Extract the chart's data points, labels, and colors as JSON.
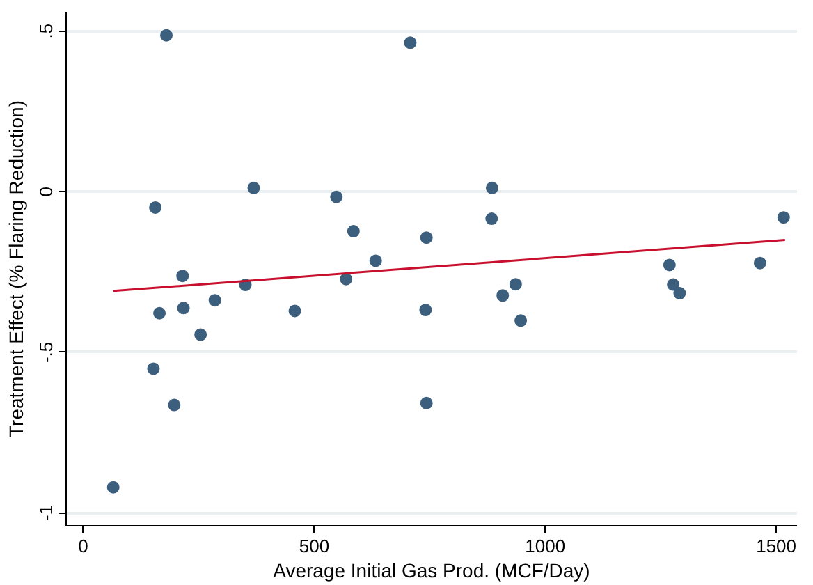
{
  "chart_data": {
    "type": "scatter",
    "xlabel": "Average Initial Gas Prod. (MCF/Day)",
    "ylabel": "Treatment Effect (% Flaring Reduction)",
    "xlim": [
      -37,
      1545
    ],
    "ylim": [
      -1.04,
      0.56
    ],
    "xticks": [
      0,
      500,
      1000,
      1500
    ],
    "yticks": [
      {
        "value": -1,
        "label": "-1"
      },
      {
        "value": -0.5,
        "label": "-.5"
      },
      {
        "value": 0,
        "label": "0"
      },
      {
        "value": 0.5,
        "label": ".5"
      }
    ],
    "grid": "y",
    "series": [
      {
        "marker": "circle",
        "color": "#3d5f7e",
        "x": [
          180,
          708,
          156,
          369,
          548,
          585,
          743,
          633,
          215,
          569,
          351,
          285,
          165,
          217,
          458,
          741,
          254,
          152,
          197,
          743,
          65,
          885,
          884,
          936,
          908,
          947,
          1269,
          1277,
          1291,
          1465,
          1516
        ],
        "values": [
          0.487,
          0.464,
          -0.049,
          0.012,
          -0.016,
          -0.123,
          -0.143,
          -0.215,
          -0.262,
          -0.272,
          -0.29,
          -0.338,
          -0.378,
          -0.362,
          -0.371,
          -0.368,
          -0.445,
          -0.551,
          -0.664,
          -0.658,
          -0.92,
          0.012,
          -0.084,
          -0.288,
          -0.323,
          -0.401,
          -0.228,
          -0.289,
          -0.316,
          -0.222,
          -0.08
        ]
      },
      {
        "type": "line",
        "color": "#c8102e",
        "x": [
          65,
          1519
        ],
        "values": [
          -0.309,
          -0.15
        ]
      }
    ]
  }
}
